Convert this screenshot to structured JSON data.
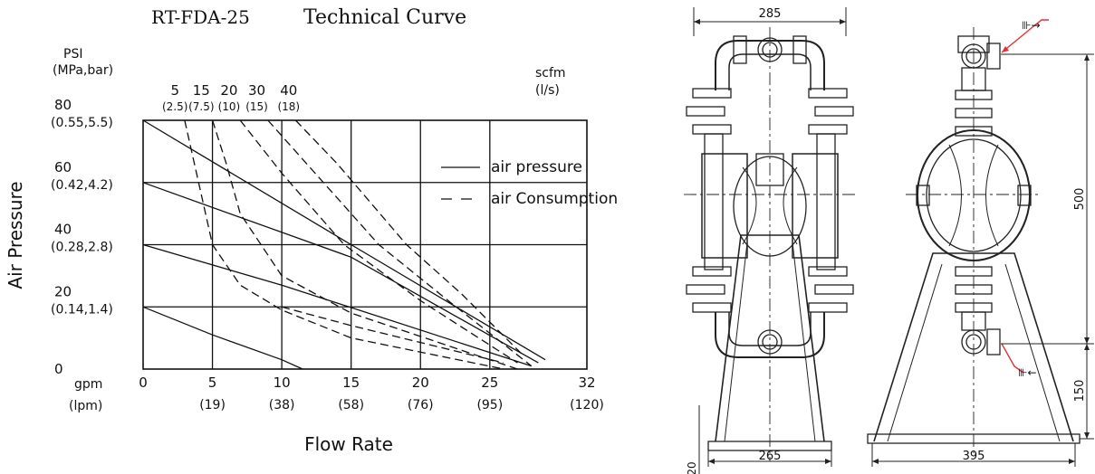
{
  "chart_data": {
    "type": "line",
    "title": "RT-FDA-25",
    "subtitle": "Technical Curve",
    "ylabel": "Air Pressure",
    "xlabel": "Flow Rate",
    "y_unit_label": [
      "PSI",
      "(MPa,bar)"
    ],
    "scfm_unit_label": [
      "scfm",
      "(l/s)"
    ],
    "x_unit_label": [
      "gpm",
      "(lpm)"
    ],
    "xlim": [
      0,
      32
    ],
    "ylim": [
      0,
      80
    ],
    "grid": true,
    "x_ticks": [
      {
        "value": 0,
        "label": "0",
        "sub": ""
      },
      {
        "value": 5,
        "label": "5",
        "sub": "(19)"
      },
      {
        "value": 10,
        "label": "10",
        "sub": "(38)"
      },
      {
        "value": 15,
        "label": "15",
        "sub": "(58)"
      },
      {
        "value": 20,
        "label": "20",
        "sub": "(76)"
      },
      {
        "value": 25,
        "label": "25",
        "sub": "(95)"
      },
      {
        "value": 32,
        "label": "32",
        "sub": "(120)"
      }
    ],
    "y_ticks": [
      {
        "value": 0,
        "label": "0",
        "sub": ""
      },
      {
        "value": 20,
        "label": "20",
        "sub": "(0.14,1.4)"
      },
      {
        "value": 40,
        "label": "40",
        "sub": "(0.28,2.8)"
      },
      {
        "value": 60,
        "label": "60",
        "sub": "(0.42,4.2)"
      },
      {
        "value": 80,
        "label": "80",
        "sub": "(0.55,5.5)"
      }
    ],
    "consumption_labels": [
      {
        "at_x": 2.3,
        "label": "5",
        "sub": "(2.5)"
      },
      {
        "at_x": 4.2,
        "label": "15",
        "sub": "(7.5)"
      },
      {
        "at_x": 6.2,
        "label": "20",
        "sub": "(10)"
      },
      {
        "at_x": 8.2,
        "label": "30",
        "sub": "(15)"
      },
      {
        "at_x": 10.5,
        "label": "40",
        "sub": "(18)"
      }
    ],
    "legend": [
      {
        "label": "air pressure",
        "style": "solid"
      },
      {
        "label": "air Consumption",
        "style": "dashed"
      }
    ],
    "legend_position": "top-right",
    "series": [
      {
        "style": "solid",
        "points": [
          [
            0,
            80
          ],
          [
            15,
            40
          ],
          [
            29,
            3
          ]
        ]
      },
      {
        "style": "solid",
        "points": [
          [
            0,
            60
          ],
          [
            15,
            36
          ],
          [
            28.5,
            2
          ]
        ]
      },
      {
        "style": "solid",
        "points": [
          [
            0,
            40
          ],
          [
            10,
            27
          ],
          [
            28,
            1
          ]
        ]
      },
      {
        "style": "solid",
        "points": [
          [
            0,
            20
          ],
          [
            5,
            11
          ],
          [
            10,
            3
          ],
          [
            11.5,
            0
          ]
        ]
      },
      {
        "style": "dashed",
        "points": [
          [
            3,
            80
          ],
          [
            4,
            60
          ],
          [
            5,
            40
          ],
          [
            7,
            27
          ],
          [
            10,
            19
          ],
          [
            15,
            10
          ],
          [
            26,
            0
          ]
        ]
      },
      {
        "style": "dashed",
        "points": [
          [
            5,
            80
          ],
          [
            6,
            66
          ],
          [
            7,
            50
          ],
          [
            8.5,
            40
          ],
          [
            10,
            30
          ],
          [
            15,
            18
          ],
          [
            27,
            0
          ]
        ]
      },
      {
        "style": "dashed",
        "points": [
          [
            7,
            80
          ],
          [
            10,
            63
          ],
          [
            14.5,
            40
          ],
          [
            20,
            22
          ],
          [
            27,
            2
          ]
        ]
      },
      {
        "style": "dashed",
        "points": [
          [
            9,
            80
          ],
          [
            12,
            65
          ],
          [
            17,
            40
          ],
          [
            22,
            22
          ],
          [
            28,
            1
          ]
        ]
      },
      {
        "style": "dashed",
        "points": [
          [
            11,
            80
          ],
          [
            14,
            66
          ],
          [
            19,
            40
          ],
          [
            23,
            24
          ],
          [
            27.5,
            4
          ]
        ]
      },
      {
        "style": "dashed",
        "points": [
          [
            10,
            20
          ],
          [
            15,
            14
          ],
          [
            26,
            2
          ]
        ]
      }
    ]
  },
  "drawing": {
    "dimensions": {
      "top_width": "285",
      "base_width_front": "265",
      "base_width_side": "395",
      "height_between_ports": "500",
      "outlet_height": "150",
      "base_thickness": "20"
    }
  }
}
